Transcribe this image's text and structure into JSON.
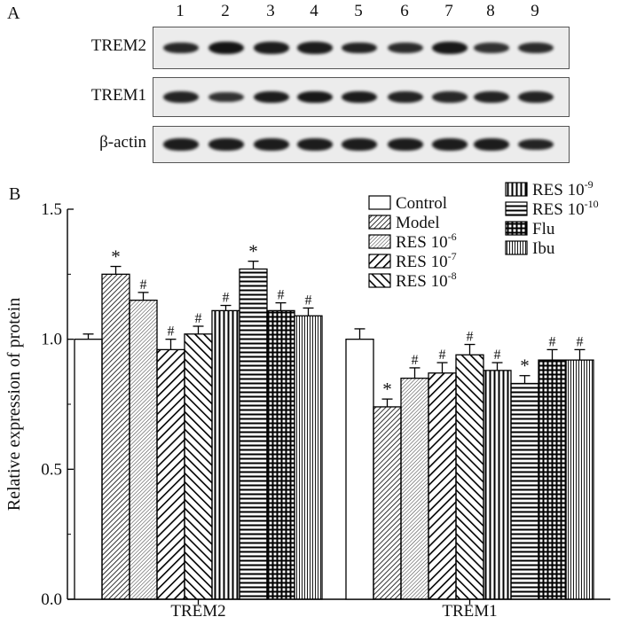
{
  "panels": {
    "a": "A",
    "b": "B"
  },
  "blot": {
    "lanes": [
      "1",
      "2",
      "3",
      "4",
      "5",
      "6",
      "7",
      "8",
      "9"
    ],
    "rows": [
      {
        "name": "TREM2",
        "intensity": [
          0.8,
          1.0,
          0.9,
          0.9,
          0.85,
          0.75,
          0.95,
          0.7,
          0.75
        ]
      },
      {
        "name": "TREM1",
        "intensity": [
          0.85,
          0.7,
          0.9,
          0.95,
          0.9,
          0.85,
          0.8,
          0.85,
          0.85
        ]
      },
      {
        "name": "β-actin",
        "intensity": [
          0.9,
          0.9,
          0.9,
          0.9,
          0.9,
          0.9,
          0.9,
          0.9,
          0.85
        ]
      }
    ]
  },
  "chart_data": {
    "type": "bar",
    "title": "",
    "xlabel": "",
    "ylabel": "Relative expression of protein",
    "ylim": [
      0.0,
      1.5
    ],
    "yticks": [
      "0.0",
      "0.5",
      "1.0",
      "1.5"
    ],
    "grid": false,
    "legend_position": "top-right",
    "categories": [
      "TREM2",
      "TREM1"
    ],
    "series": [
      {
        "name": "Control",
        "exp": "",
        "pattern": "none",
        "values": [
          1.0,
          1.0
        ],
        "errors": [
          0.02,
          0.04
        ],
        "marks": [
          "",
          ""
        ]
      },
      {
        "name": "Model",
        "exp": "",
        "pattern": "dense-diag",
        "values": [
          1.25,
          0.74
        ],
        "errors": [
          0.03,
          0.03
        ],
        "marks": [
          "*",
          "*"
        ]
      },
      {
        "name": "RES 10",
        "exp": "-6",
        "pattern": "fine-diag",
        "values": [
          1.15,
          0.85
        ],
        "errors": [
          0.03,
          0.04
        ],
        "marks": [
          "#",
          "#"
        ]
      },
      {
        "name": "RES 10",
        "exp": "-7",
        "pattern": "bold-diag",
        "values": [
          0.96,
          0.87
        ],
        "errors": [
          0.04,
          0.04
        ],
        "marks": [
          "#",
          "#"
        ]
      },
      {
        "name": "RES 10",
        "exp": "-8",
        "pattern": "back-diag",
        "values": [
          1.02,
          0.94
        ],
        "errors": [
          0.03,
          0.04
        ],
        "marks": [
          "#",
          "#"
        ]
      },
      {
        "name": "RES 10",
        "exp": "-9",
        "pattern": "vert",
        "values": [
          1.11,
          0.88
        ],
        "errors": [
          0.02,
          0.03
        ],
        "marks": [
          "#",
          "#"
        ]
      },
      {
        "name": "RES 10",
        "exp": "-10",
        "pattern": "horiz",
        "values": [
          1.27,
          0.83
        ],
        "errors": [
          0.03,
          0.03
        ],
        "marks": [
          "*",
          "*"
        ]
      },
      {
        "name": "Flu",
        "exp": "",
        "pattern": "grid",
        "values": [
          1.11,
          0.92
        ],
        "errors": [
          0.03,
          0.04
        ],
        "marks": [
          "#",
          "#"
        ]
      },
      {
        "name": "Ibu",
        "exp": "",
        "pattern": "fine-vert",
        "values": [
          1.09,
          0.92
        ],
        "errors": [
          0.03,
          0.04
        ],
        "marks": [
          "#",
          "#"
        ]
      }
    ]
  }
}
